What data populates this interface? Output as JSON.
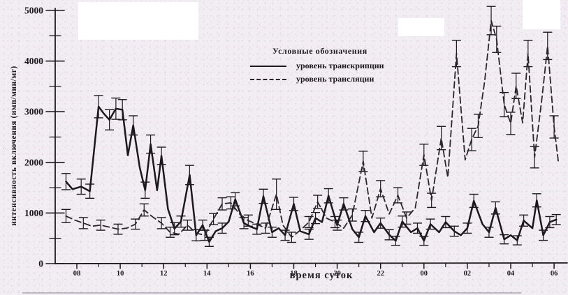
{
  "legend": {
    "title": "Условные обозначения",
    "items": [
      {
        "label": "уровень транскрипции",
        "style": "solid"
      },
      {
        "label": "уровень трансляции",
        "style": "dashed"
      }
    ]
  },
  "axes": {
    "y_label": "интенсивность включения (имп/мин/мг)",
    "x_label": "время суток"
  },
  "chart_data": {
    "type": "line",
    "title": "",
    "xlabel": "время суток",
    "ylabel": "интенсивность включения (имп/мин/мг)",
    "ylim": [
      0,
      5000
    ],
    "grid": false,
    "error_bars": true,
    "legend_position": "top-center",
    "x_note": "x is time of day, hours 8..30 meaning 08:00 through 06:00 next morning, points ~ every 20-30 min",
    "y_major_ticks": [
      0,
      1000,
      2000,
      3000,
      4000,
      5000
    ],
    "y_minor_ticks": [
      500,
      1500,
      2500,
      3500,
      4500
    ],
    "x_ticks": [
      {
        "t": 8,
        "label": "08"
      },
      {
        "t": 10,
        "label": "10"
      },
      {
        "t": 12,
        "label": "12"
      },
      {
        "t": 14,
        "label": "14"
      },
      {
        "t": 16,
        "label": "16"
      },
      {
        "t": 18,
        "label": "18"
      },
      {
        "t": 20,
        "label": "20"
      },
      {
        "t": 22,
        "label": "22"
      },
      {
        "t": 24,
        "label": "00"
      },
      {
        "t": 26,
        "label": "02"
      },
      {
        "t": 28,
        "label": "04"
      },
      {
        "t": 30,
        "label": "06"
      }
    ],
    "x_minor_hours": [
      9,
      11,
      13,
      15,
      17,
      19,
      21,
      23,
      25,
      27,
      29
    ],
    "series": [
      {
        "name": "уровень транскрипции",
        "style": "solid",
        "points": [
          [
            7.5,
            1620,
            160
          ],
          [
            7.8,
            1470,
            0
          ],
          [
            8.2,
            1520,
            150
          ],
          [
            8.6,
            1430,
            140
          ],
          [
            9.0,
            3100,
            220
          ],
          [
            9.25,
            2960,
            0
          ],
          [
            9.5,
            2840,
            200
          ],
          [
            9.8,
            3060,
            210
          ],
          [
            10.1,
            3040,
            200
          ],
          [
            10.35,
            2140,
            0
          ],
          [
            10.6,
            2730,
            190
          ],
          [
            10.9,
            1900,
            0
          ],
          [
            11.15,
            1450,
            160
          ],
          [
            11.4,
            2360,
            180
          ],
          [
            11.7,
            1450,
            0
          ],
          [
            11.9,
            2130,
            170
          ],
          [
            12.2,
            1080,
            0
          ],
          [
            12.5,
            690,
            120
          ],
          [
            12.8,
            830,
            110
          ],
          [
            13.2,
            1750,
            190
          ],
          [
            13.5,
            560,
            110
          ],
          [
            13.8,
            760,
            100
          ],
          [
            14.1,
            430,
            90
          ],
          [
            14.4,
            640,
            0
          ],
          [
            14.7,
            700,
            100
          ],
          [
            15.0,
            830,
            0
          ],
          [
            15.3,
            1270,
            130
          ],
          [
            15.7,
            800,
            110
          ],
          [
            16.0,
            730,
            0
          ],
          [
            16.3,
            680,
            100
          ],
          [
            16.6,
            1330,
            140
          ],
          [
            17.0,
            620,
            100
          ],
          [
            17.3,
            700,
            0
          ],
          [
            17.6,
            560,
            100
          ],
          [
            18.0,
            1180,
            130
          ],
          [
            18.3,
            640,
            0
          ],
          [
            18.7,
            580,
            100
          ],
          [
            19.0,
            900,
            110
          ],
          [
            19.3,
            820,
            0
          ],
          [
            19.6,
            1340,
            140
          ],
          [
            20.0,
            760,
            100
          ],
          [
            20.3,
            1180,
            120
          ],
          [
            20.7,
            680,
            0
          ],
          [
            21.0,
            520,
            100
          ],
          [
            21.3,
            940,
            110
          ],
          [
            21.7,
            620,
            0
          ],
          [
            22.0,
            800,
            100
          ],
          [
            22.4,
            570,
            100
          ],
          [
            22.7,
            450,
            90
          ],
          [
            23.0,
            830,
            110
          ],
          [
            23.4,
            620,
            0
          ],
          [
            23.7,
            700,
            100
          ],
          [
            24.0,
            450,
            90
          ],
          [
            24.3,
            780,
            100
          ],
          [
            24.7,
            620,
            0
          ],
          [
            25.0,
            820,
            110
          ],
          [
            25.4,
            640,
            100
          ],
          [
            25.7,
            560,
            0
          ],
          [
            26.0,
            700,
            100
          ],
          [
            26.3,
            1240,
            130
          ],
          [
            26.7,
            780,
            0
          ],
          [
            27.0,
            620,
            100
          ],
          [
            27.3,
            1100,
            120
          ],
          [
            27.7,
            480,
            90
          ],
          [
            28.0,
            560,
            0
          ],
          [
            28.3,
            460,
            90
          ],
          [
            28.6,
            850,
            110
          ],
          [
            29.0,
            700,
            0
          ],
          [
            29.2,
            1250,
            130
          ],
          [
            29.5,
            560,
            100
          ],
          [
            29.8,
            820,
            110
          ],
          [
            30.1,
            870,
            100
          ]
        ]
      },
      {
        "name": "уровень трансляции",
        "style": "dashed",
        "points": [
          [
            7.5,
            940,
            130
          ],
          [
            7.9,
            860,
            0
          ],
          [
            8.3,
            800,
            110
          ],
          [
            8.7,
            740,
            0
          ],
          [
            9.1,
            760,
            100
          ],
          [
            9.5,
            720,
            0
          ],
          [
            9.9,
            680,
            100
          ],
          [
            10.3,
            700,
            0
          ],
          [
            10.7,
            780,
            100
          ],
          [
            11.1,
            1060,
            120
          ],
          [
            11.5,
            920,
            0
          ],
          [
            11.9,
            800,
            110
          ],
          [
            12.3,
            620,
            100
          ],
          [
            12.7,
            580,
            0
          ],
          [
            13.1,
            760,
            100
          ],
          [
            13.5,
            600,
            0
          ],
          [
            13.9,
            560,
            100
          ],
          [
            14.3,
            880,
            110
          ],
          [
            14.7,
            1180,
            120
          ],
          [
            15.1,
            1200,
            120
          ],
          [
            15.5,
            980,
            0
          ],
          [
            15.9,
            850,
            110
          ],
          [
            16.3,
            780,
            0
          ],
          [
            16.7,
            700,
            100
          ],
          [
            17.2,
            1370,
            300
          ],
          [
            17.5,
            760,
            0
          ],
          [
            17.9,
            520,
            100
          ],
          [
            18.3,
            660,
            0
          ],
          [
            18.7,
            820,
            110
          ],
          [
            19.1,
            1220,
            130
          ],
          [
            19.5,
            900,
            0
          ],
          [
            19.9,
            820,
            110
          ],
          [
            20.3,
            700,
            0
          ],
          [
            20.7,
            960,
            120
          ],
          [
            21.2,
            2020,
            200
          ],
          [
            21.6,
            900,
            0
          ],
          [
            22.0,
            1480,
            160
          ],
          [
            22.4,
            980,
            0
          ],
          [
            22.8,
            1350,
            150
          ],
          [
            23.2,
            900,
            120
          ],
          [
            23.6,
            1100,
            0
          ],
          [
            24.0,
            2150,
            210
          ],
          [
            24.35,
            1250,
            140
          ],
          [
            24.8,
            2480,
            230
          ],
          [
            25.1,
            1700,
            0
          ],
          [
            25.5,
            4150,
            260
          ],
          [
            25.9,
            2050,
            0
          ],
          [
            26.2,
            2450,
            220
          ],
          [
            26.5,
            2720,
            230
          ],
          [
            26.8,
            3600,
            0
          ],
          [
            27.1,
            4800,
            280
          ],
          [
            27.35,
            4430,
            260
          ],
          [
            27.7,
            3140,
            240
          ],
          [
            28.0,
            2770,
            220
          ],
          [
            28.25,
            3510,
            250
          ],
          [
            28.55,
            2780,
            0
          ],
          [
            28.8,
            4150,
            260
          ],
          [
            29.1,
            2100,
            210
          ],
          [
            29.45,
            3300,
            0
          ],
          [
            29.7,
            4300,
            270
          ],
          [
            30.0,
            2700,
            220
          ],
          [
            30.2,
            2000,
            0
          ]
        ]
      }
    ]
  },
  "colors": {
    "ink": "#1c191c",
    "paper": "#f2edf2",
    "whiteout": "#ffffff"
  }
}
